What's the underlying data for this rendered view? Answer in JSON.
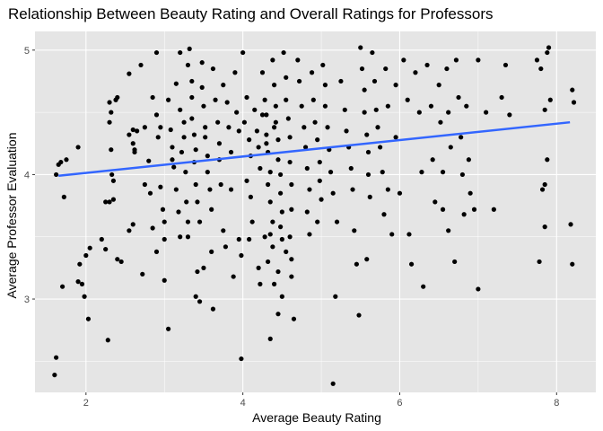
{
  "chart_data": {
    "type": "scatter",
    "title": "Relationship Between Beauty Rating and Overall Ratings for Professors",
    "xlabel": "Average Beauty Rating",
    "ylabel": "Average Professor Evaluation",
    "xlim": [
      1.35,
      8.5
    ],
    "ylim": [
      2.25,
      5.15
    ],
    "x_ticks": [
      2,
      4,
      6,
      8
    ],
    "y_ticks": [
      3,
      4,
      5
    ],
    "grid": true,
    "background": "#e5e5e5",
    "grid_color": "#ffffff",
    "point_color": "#000000",
    "trend_color": "#3366ff",
    "trend_line": {
      "x": [
        1.65,
        8.17
      ],
      "y": [
        3.99,
        4.42
      ]
    },
    "points": [
      [
        1.62,
        2.53
      ],
      [
        1.6,
        2.39
      ],
      [
        1.62,
        4.0
      ],
      [
        1.65,
        4.08
      ],
      [
        1.68,
        4.1
      ],
      [
        1.72,
        3.82
      ],
      [
        1.75,
        4.12
      ],
      [
        1.7,
        3.1
      ],
      [
        1.9,
        4.22
      ],
      [
        1.92,
        3.28
      ],
      [
        1.95,
        3.12
      ],
      [
        1.9,
        3.14
      ],
      [
        1.98,
        3.02
      ],
      [
        2.03,
        2.84
      ],
      [
        2.0,
        3.35
      ],
      [
        2.05,
        3.41
      ],
      [
        2.2,
        3.48
      ],
      [
        2.25,
        3.4
      ],
      [
        2.3,
        4.58
      ],
      [
        2.3,
        4.42
      ],
      [
        2.32,
        4.2
      ],
      [
        2.33,
        4.0
      ],
      [
        2.35,
        3.8
      ],
      [
        2.3,
        3.78
      ],
      [
        2.35,
        3.95
      ],
      [
        2.4,
        4.62
      ],
      [
        2.38,
        4.6
      ],
      [
        2.4,
        3.32
      ],
      [
        2.45,
        3.3
      ],
      [
        2.28,
        2.67
      ],
      [
        2.25,
        3.78
      ],
      [
        2.32,
        4.5
      ],
      [
        2.6,
        4.36
      ],
      [
        2.55,
        4.32
      ],
      [
        2.6,
        4.25
      ],
      [
        2.62,
        4.2
      ],
      [
        2.55,
        4.81
      ],
      [
        2.65,
        4.35
      ],
      [
        2.62,
        4.18
      ],
      [
        2.55,
        3.55
      ],
      [
        2.7,
        4.88
      ],
      [
        2.75,
        4.38
      ],
      [
        2.8,
        4.11
      ],
      [
        2.75,
        3.92
      ],
      [
        2.72,
        3.2
      ],
      [
        2.6,
        3.6
      ],
      [
        2.82,
        3.85
      ],
      [
        2.85,
        3.57
      ],
      [
        2.9,
        4.98
      ],
      [
        2.85,
        4.62
      ],
      [
        2.9,
        4.48
      ],
      [
        2.95,
        4.38
      ],
      [
        2.92,
        4.3
      ],
      [
        2.95,
        3.9
      ],
      [
        2.98,
        3.72
      ],
      [
        3.0,
        3.62
      ],
      [
        3.0,
        3.48
      ],
      [
        2.9,
        3.38
      ],
      [
        3.0,
        3.15
      ],
      [
        3.05,
        2.76
      ],
      [
        3.05,
        4.6
      ],
      [
        3.08,
        4.36
      ],
      [
        3.1,
        4.22
      ],
      [
        3.1,
        4.12
      ],
      [
        3.12,
        4.06
      ],
      [
        3.15,
        3.88
      ],
      [
        3.18,
        3.7
      ],
      [
        3.2,
        3.5
      ],
      [
        3.15,
        4.73
      ],
      [
        3.2,
        4.52
      ],
      [
        3.2,
        4.98
      ],
      [
        3.25,
        4.42
      ],
      [
        3.25,
        4.3
      ],
      [
        3.22,
        4.18
      ],
      [
        3.27,
        4.02
      ],
      [
        3.28,
        3.78
      ],
      [
        3.3,
        3.62
      ],
      [
        3.3,
        3.5
      ],
      [
        3.32,
        5.01
      ],
      [
        3.3,
        4.88
      ],
      [
        3.35,
        4.75
      ],
      [
        3.35,
        4.62
      ],
      [
        3.35,
        4.45
      ],
      [
        3.38,
        4.32
      ],
      [
        3.4,
        4.2
      ],
      [
        3.38,
        4.1
      ],
      [
        3.4,
        3.92
      ],
      [
        3.42,
        3.78
      ],
      [
        3.45,
        3.62
      ],
      [
        3.42,
        3.22
      ],
      [
        3.4,
        3.02
      ],
      [
        3.45,
        2.98
      ],
      [
        3.48,
        4.9
      ],
      [
        3.48,
        4.7
      ],
      [
        3.5,
        4.55
      ],
      [
        3.52,
        4.38
      ],
      [
        3.52,
        4.3
      ],
      [
        3.55,
        4.15
      ],
      [
        3.55,
        4.02
      ],
      [
        3.58,
        3.88
      ],
      [
        3.6,
        3.72
      ],
      [
        3.6,
        3.38
      ],
      [
        3.62,
        2.92
      ],
      [
        3.5,
        3.25
      ],
      [
        3.62,
        4.85
      ],
      [
        3.65,
        4.6
      ],
      [
        3.68,
        4.42
      ],
      [
        3.7,
        4.25
      ],
      [
        3.7,
        4.12
      ],
      [
        3.72,
        3.92
      ],
      [
        3.75,
        3.55
      ],
      [
        3.78,
        3.42
      ],
      [
        3.75,
        4.72
      ],
      [
        3.8,
        4.58
      ],
      [
        3.82,
        4.38
      ],
      [
        3.85,
        4.18
      ],
      [
        3.85,
        3.88
      ],
      [
        3.88,
        3.18
      ],
      [
        3.9,
        4.82
      ],
      [
        3.92,
        4.5
      ],
      [
        3.95,
        4.35
      ],
      [
        3.98,
        3.35
      ],
      [
        3.95,
        3.48
      ],
      [
        3.98,
        2.52
      ],
      [
        4.0,
        4.98
      ],
      [
        4.05,
        4.62
      ],
      [
        4.02,
        4.42
      ],
      [
        4.08,
        4.28
      ],
      [
        4.1,
        4.15
      ],
      [
        4.05,
        3.95
      ],
      [
        4.1,
        3.82
      ],
      [
        4.12,
        3.62
      ],
      [
        4.08,
        3.48
      ],
      [
        4.15,
        4.52
      ],
      [
        4.18,
        4.35
      ],
      [
        4.2,
        4.22
      ],
      [
        4.22,
        4.05
      ],
      [
        4.2,
        3.25
      ],
      [
        4.22,
        3.12
      ],
      [
        4.25,
        4.82
      ],
      [
        4.28,
        4.6
      ],
      [
        4.3,
        4.48
      ],
      [
        4.3,
        4.32
      ],
      [
        4.32,
        4.18
      ],
      [
        4.35,
        4.02
      ],
      [
        4.32,
        3.92
      ],
      [
        4.35,
        3.78
      ],
      [
        4.38,
        3.62
      ],
      [
        4.35,
        3.52
      ],
      [
        4.38,
        3.42
      ],
      [
        4.32,
        3.3
      ],
      [
        4.35,
        2.68
      ],
      [
        4.38,
        4.92
      ],
      [
        4.4,
        4.72
      ],
      [
        4.42,
        4.55
      ],
      [
        4.42,
        4.42
      ],
      [
        4.45,
        4.28
      ],
      [
        4.45,
        4.12
      ],
      [
        4.48,
        4.0
      ],
      [
        4.48,
        3.85
      ],
      [
        4.5,
        3.7
      ],
      [
        4.5,
        3.48
      ],
      [
        4.45,
        3.22
      ],
      [
        4.5,
        3.02
      ],
      [
        4.52,
        4.98
      ],
      [
        4.55,
        4.78
      ],
      [
        4.55,
        4.6
      ],
      [
        4.58,
        4.45
      ],
      [
        4.6,
        4.3
      ],
      [
        4.6,
        4.1
      ],
      [
        4.62,
        3.92
      ],
      [
        4.62,
        3.72
      ],
      [
        4.6,
        3.5
      ],
      [
        4.62,
        3.32
      ],
      [
        4.62,
        3.18
      ],
      [
        4.65,
        2.84
      ],
      [
        4.4,
        4.38
      ],
      [
        4.25,
        4.48
      ],
      [
        4.3,
        4.25
      ],
      [
        4.48,
        3.58
      ],
      [
        4.55,
        3.38
      ],
      [
        4.4,
        3.12
      ],
      [
        4.45,
        2.88
      ],
      [
        4.28,
        3.5
      ],
      [
        4.7,
        4.92
      ],
      [
        4.72,
        4.75
      ],
      [
        4.75,
        4.55
      ],
      [
        4.78,
        4.38
      ],
      [
        4.8,
        4.22
      ],
      [
        4.82,
        4.05
      ],
      [
        4.85,
        3.88
      ],
      [
        4.82,
        3.7
      ],
      [
        4.85,
        3.52
      ],
      [
        4.88,
        4.82
      ],
      [
        4.9,
        4.6
      ],
      [
        4.92,
        4.42
      ],
      [
        4.95,
        4.28
      ],
      [
        4.98,
        4.1
      ],
      [
        4.98,
        3.95
      ],
      [
        5.0,
        3.8
      ],
      [
        4.95,
        3.62
      ],
      [
        5.02,
        4.88
      ],
      [
        5.05,
        4.72
      ],
      [
        5.05,
        4.55
      ],
      [
        5.08,
        4.38
      ],
      [
        5.1,
        4.2
      ],
      [
        5.12,
        4.02
      ],
      [
        5.15,
        3.85
      ],
      [
        5.2,
        3.62
      ],
      [
        5.18,
        3.02
      ],
      [
        5.15,
        2.32
      ],
      [
        5.25,
        4.75
      ],
      [
        5.3,
        4.52
      ],
      [
        5.32,
        4.35
      ],
      [
        5.35,
        4.22
      ],
      [
        5.38,
        4.05
      ],
      [
        5.4,
        3.88
      ],
      [
        5.42,
        3.55
      ],
      [
        5.45,
        3.28
      ],
      [
        5.48,
        2.87
      ],
      [
        5.5,
        5.02
      ],
      [
        5.52,
        4.85
      ],
      [
        5.55,
        4.68
      ],
      [
        5.55,
        4.5
      ],
      [
        5.58,
        4.32
      ],
      [
        5.6,
        4.18
      ],
      [
        5.6,
        4.0
      ],
      [
        5.62,
        3.82
      ],
      [
        5.58,
        3.32
      ],
      [
        5.65,
        4.98
      ],
      [
        5.68,
        4.75
      ],
      [
        5.7,
        4.52
      ],
      [
        5.72,
        4.38
      ],
      [
        5.75,
        4.22
      ],
      [
        5.78,
        4.02
      ],
      [
        5.8,
        3.68
      ],
      [
        5.82,
        4.85
      ],
      [
        5.85,
        4.55
      ],
      [
        5.85,
        3.88
      ],
      [
        5.9,
        3.52
      ],
      [
        5.95,
        4.72
      ],
      [
        5.95,
        4.3
      ],
      [
        6.0,
        3.85
      ],
      [
        6.05,
        4.92
      ],
      [
        6.1,
        4.6
      ],
      [
        6.12,
        3.52
      ],
      [
        6.15,
        3.28
      ],
      [
        6.2,
        4.82
      ],
      [
        6.25,
        4.5
      ],
      [
        6.28,
        4.02
      ],
      [
        6.3,
        3.1
      ],
      [
        6.35,
        4.88
      ],
      [
        6.4,
        4.55
      ],
      [
        6.42,
        4.12
      ],
      [
        6.45,
        3.78
      ],
      [
        6.5,
        4.72
      ],
      [
        6.52,
        4.42
      ],
      [
        6.55,
        4.02
      ],
      [
        6.55,
        3.72
      ],
      [
        6.6,
        4.85
      ],
      [
        6.62,
        4.5
      ],
      [
        6.65,
        4.22
      ],
      [
        6.62,
        3.55
      ],
      [
        6.7,
        3.3
      ],
      [
        6.72,
        4.92
      ],
      [
        6.75,
        4.62
      ],
      [
        6.78,
        4.3
      ],
      [
        6.8,
        4.0
      ],
      [
        6.82,
        3.68
      ],
      [
        6.85,
        4.55
      ],
      [
        6.88,
        4.12
      ],
      [
        6.9,
        3.85
      ],
      [
        6.95,
        3.72
      ],
      [
        7.0,
        4.92
      ],
      [
        7.0,
        3.08
      ],
      [
        7.1,
        4.5
      ],
      [
        7.2,
        3.72
      ],
      [
        7.3,
        4.62
      ],
      [
        7.35,
        4.88
      ],
      [
        7.4,
        4.48
      ],
      [
        7.75,
        4.92
      ],
      [
        7.78,
        3.3
      ],
      [
        7.8,
        4.85
      ],
      [
        7.82,
        3.88
      ],
      [
        7.85,
        4.52
      ],
      [
        7.85,
        3.92
      ],
      [
        7.88,
        4.12
      ],
      [
        7.85,
        3.58
      ],
      [
        7.9,
        5.02
      ],
      [
        7.92,
        4.6
      ],
      [
        7.88,
        4.98
      ],
      [
        8.2,
        4.68
      ],
      [
        8.22,
        4.58
      ],
      [
        8.18,
        3.6
      ],
      [
        8.2,
        3.28
      ]
    ]
  }
}
